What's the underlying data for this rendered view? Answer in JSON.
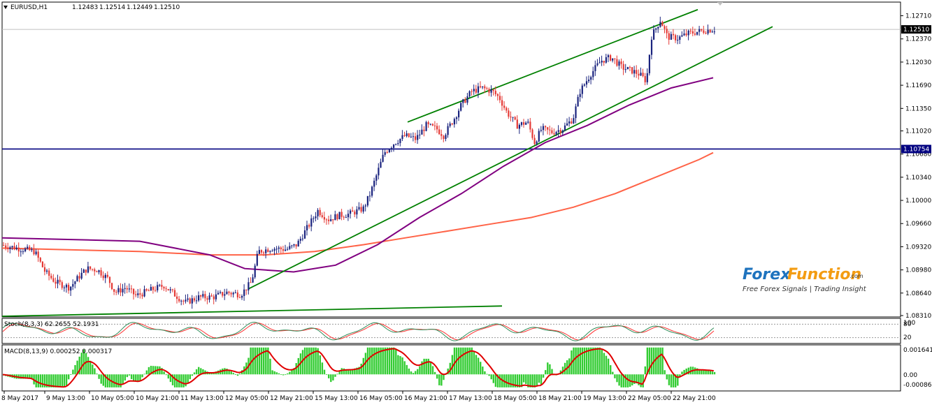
{
  "chart_data": {
    "type": "candlestick",
    "symbol": "EURUSD,H1",
    "ohlc_header": {
      "open": "1.12483",
      "high": "1.12514",
      "low": "1.12449",
      "close": "1.12510"
    },
    "price_axis_ticks": [
      "1.12710",
      "1.12370",
      "1.12030",
      "1.11690",
      "1.11350",
      "1.11020",
      "1.10680",
      "1.10340",
      "1.10000",
      "1.09660",
      "1.09320",
      "1.08980",
      "1.08640",
      "1.08310"
    ],
    "current_price_label": "1.12510",
    "current_price": 1.1251,
    "horizontal_level_label": "1.10754",
    "horizontal_level": 1.10754,
    "time_axis_labels": [
      "8 May 2017",
      "9 May 13:00",
      "10 May 05:00",
      "10 May 21:00",
      "11 May 13:00",
      "12 May 05:00",
      "12 May 21:00",
      "15 May 13:00",
      "16 May 05:00",
      "16 May 21:00",
      "17 May 13:00",
      "18 May 05:00",
      "18 May 21:00",
      "19 May 13:00",
      "22 May 05:00",
      "22 May 21:00"
    ],
    "price_path": [
      [
        0,
        1.0935
      ],
      [
        25,
        1.093
      ],
      [
        50,
        1.0925
      ],
      [
        65,
        1.0895
      ],
      [
        80,
        1.088
      ],
      [
        100,
        1.0872
      ],
      [
        115,
        1.089
      ],
      [
        125,
        1.09
      ],
      [
        140,
        1.0898
      ],
      [
        155,
        1.0885
      ],
      [
        165,
        1.0865
      ],
      [
        180,
        1.0872
      ],
      [
        195,
        1.086
      ],
      [
        215,
        1.0868
      ],
      [
        235,
        1.0875
      ],
      [
        250,
        1.0862
      ],
      [
        265,
        1.085
      ],
      [
        285,
        1.0858
      ],
      [
        305,
        1.0858
      ],
      [
        325,
        1.0865
      ],
      [
        345,
        1.0862
      ],
      [
        360,
        1.088
      ],
      [
        370,
        1.0925
      ],
      [
        390,
        1.093
      ],
      [
        410,
        1.0928
      ],
      [
        425,
        1.0935
      ],
      [
        440,
        1.096
      ],
      [
        455,
        1.0985
      ],
      [
        470,
        1.0972
      ],
      [
        485,
        1.0978
      ],
      [
        500,
        1.098
      ],
      [
        520,
        1.0988
      ],
      [
        530,
        1.101
      ],
      [
        540,
        1.104
      ],
      [
        550,
        1.107
      ],
      [
        565,
        1.1085
      ],
      [
        580,
        1.1095
      ],
      [
        595,
        1.109
      ],
      [
        610,
        1.111
      ],
      [
        625,
        1.1105
      ],
      [
        635,
        1.1095
      ],
      [
        650,
        1.112
      ],
      [
        660,
        1.114
      ],
      [
        675,
        1.116
      ],
      [
        690,
        1.1165
      ],
      [
        705,
        1.116
      ],
      [
        715,
        1.115
      ],
      [
        725,
        1.113
      ],
      [
        740,
        1.111
      ],
      [
        755,
        1.1115
      ],
      [
        765,
        1.1085
      ],
      [
        775,
        1.1105
      ],
      [
        790,
        1.11
      ],
      [
        805,
        1.1105
      ],
      [
        820,
        1.112
      ],
      [
        830,
        1.116
      ],
      [
        845,
        1.1185
      ],
      [
        860,
        1.1205
      ],
      [
        875,
        1.121
      ],
      [
        890,
        1.1195
      ],
      [
        905,
        1.119
      ],
      [
        915,
        1.1185
      ],
      [
        925,
        1.1175
      ],
      [
        932,
        1.124
      ],
      [
        945,
        1.1265
      ],
      [
        955,
        1.124
      ],
      [
        970,
        1.1238
      ],
      [
        985,
        1.1245
      ],
      [
        1000,
        1.1248
      ],
      [
        1012,
        1.125
      ],
      [
        1020,
        1.1251
      ]
    ],
    "channel_upper": [
      [
        583,
        1.1115
      ],
      [
        998,
        1.128
      ]
    ],
    "channel_lower": [
      [
        355,
        1.087
      ],
      [
        1105,
        1.1255
      ]
    ],
    "support_line": [
      [
        3,
        1.083
      ],
      [
        718,
        1.0845
      ]
    ],
    "ma_purple": [
      [
        3,
        1.0945
      ],
      [
        200,
        1.094
      ],
      [
        300,
        1.092
      ],
      [
        350,
        1.09
      ],
      [
        420,
        1.0895
      ],
      [
        480,
        1.0905
      ],
      [
        540,
        1.0935
      ],
      [
        600,
        1.0975
      ],
      [
        660,
        1.101
      ],
      [
        720,
        1.105
      ],
      [
        780,
        1.1085
      ],
      [
        840,
        1.111
      ],
      [
        900,
        1.114
      ],
      [
        960,
        1.1165
      ],
      [
        1020,
        1.118
      ]
    ],
    "ma_salmon": [
      [
        3,
        1.093
      ],
      [
        200,
        1.0925
      ],
      [
        300,
        1.092
      ],
      [
        380,
        1.092
      ],
      [
        450,
        1.0925
      ],
      [
        520,
        1.0935
      ],
      [
        580,
        1.0945
      ],
      [
        640,
        1.0955
      ],
      [
        700,
        1.0965
      ],
      [
        760,
        1.0975
      ],
      [
        820,
        1.099
      ],
      [
        880,
        1.101
      ],
      [
        940,
        1.1035
      ],
      [
        1000,
        1.106
      ],
      [
        1020,
        1.107
      ]
    ],
    "price_ylim": [
      1.0831,
      1.129
    ],
    "stochastic": {
      "label": "Stoch(8,3,3) 62.2655 52.1931",
      "main_value": 62.2655,
      "signal_value": 52.1931,
      "levels": [
        "80",
        "20"
      ],
      "right_label": "100"
    },
    "macd": {
      "label": "MACD(8,13,9) 0.000252 0.000317",
      "main_value": 0.000252,
      "signal_value": 0.000317,
      "ticks": [
        "0.001641",
        "0.00",
        "-0.000867"
      ],
      "ylim": [
        -0.000867,
        0.001641
      ]
    },
    "colors": {
      "bull_candle": "#1a237e",
      "bear_candle": "#e53935",
      "channel": "#008000",
      "horizontal": "#000080",
      "ma_purple": "#800080",
      "ma_salmon": "#ff6347",
      "macd_hist": "#33cc33",
      "macd_signal": "#e00000",
      "stoch_main": "#2e8b57",
      "stoch_signal": "#ff3030"
    }
  },
  "watermark": {
    "brand_forex": "Forex",
    "brand_function": "Function",
    "brand_suffix": ".com",
    "tagline": "Free Forex Signals | Trading Insight"
  }
}
